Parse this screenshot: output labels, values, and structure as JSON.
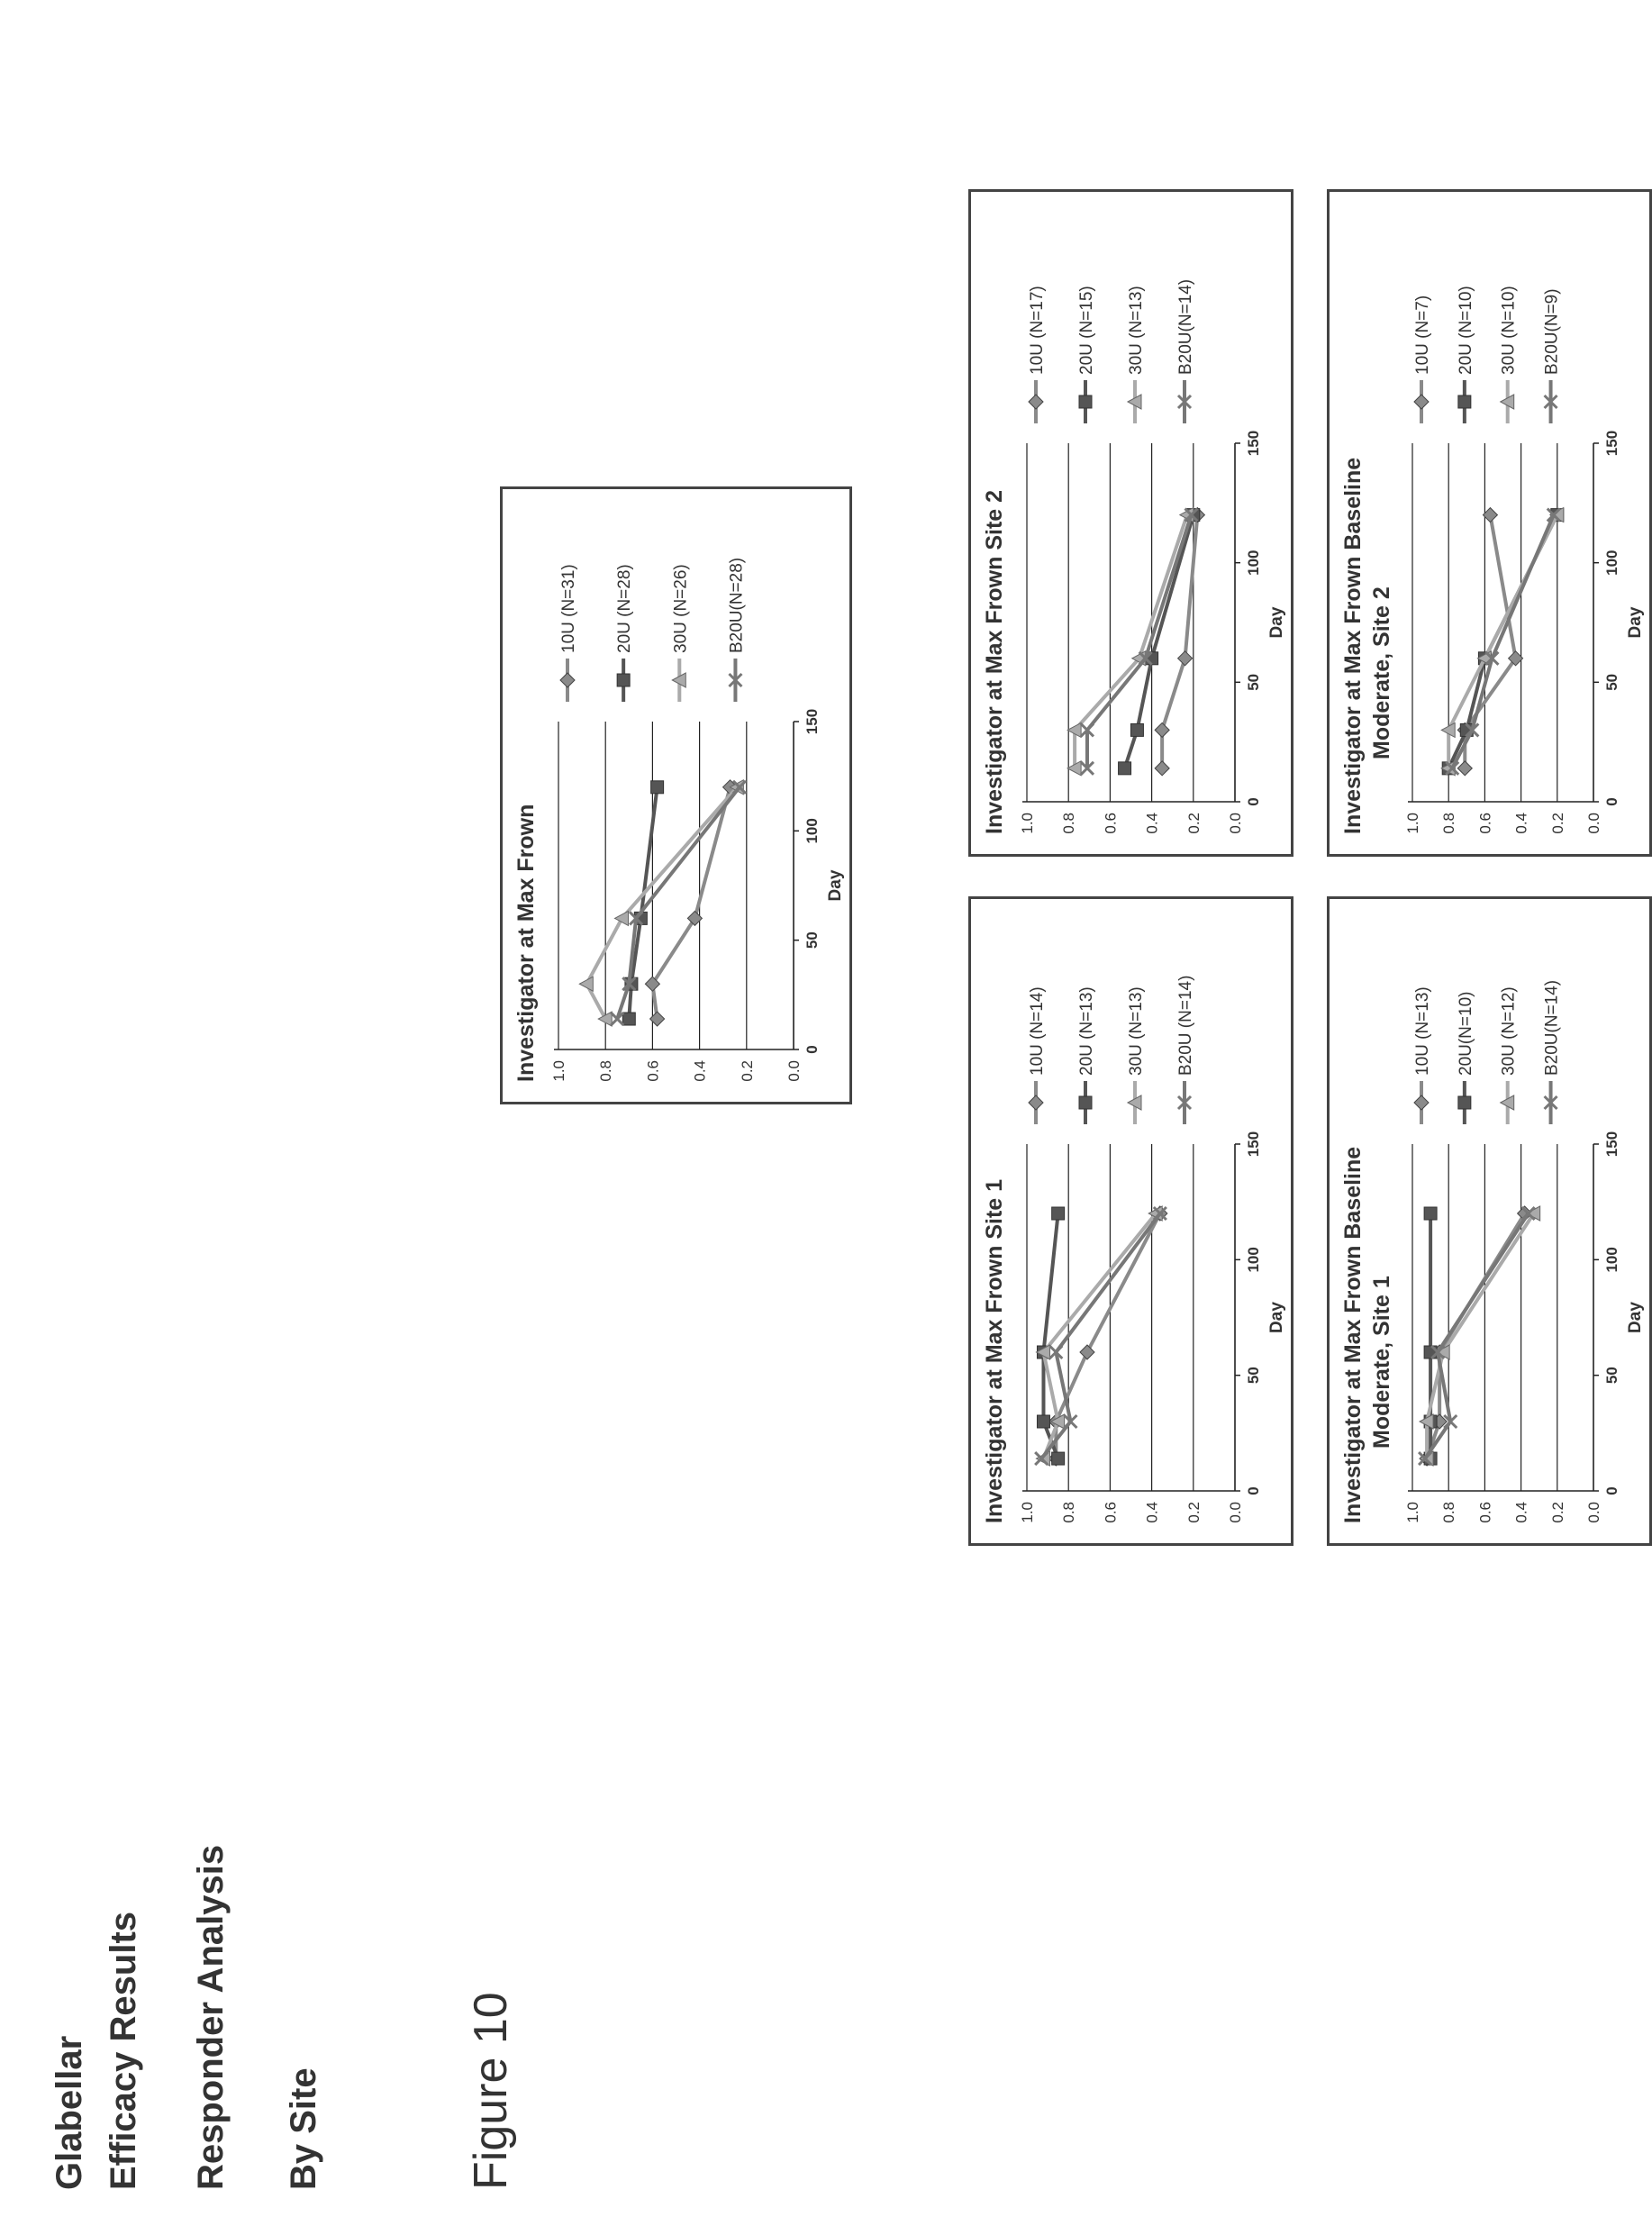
{
  "headings": {
    "line1": "Glabellar",
    "line2": "Efficacy Results",
    "line3": "Responder Analysis",
    "line4": "By Site",
    "figure_label": "Figure 10"
  },
  "chart_data": [
    {
      "id": "overall",
      "type": "line",
      "title": "Investigator at Max Frown",
      "title_lines": [
        "Investigator at Max Frown"
      ],
      "xlabel": "Day",
      "ylabel": "",
      "xlim": [
        0,
        150
      ],
      "ylim": [
        0.0,
        1.0
      ],
      "xticks": [
        0,
        50,
        100,
        150
      ],
      "yticks": [
        0.0,
        0.2,
        0.4,
        0.6,
        0.8,
        1.0
      ],
      "xtick_labels": [
        "0",
        "50",
        "100",
        "150"
      ],
      "ytick_labels": [
        "0.0",
        "0.2",
        "0.4",
        "0.6",
        "0.8",
        "1.0"
      ],
      "grid": true,
      "legend_position": "right",
      "series": [
        {
          "name": "10U (N=31)",
          "marker": "diamond",
          "color": "#8a8a8a",
          "x": [
            14,
            30,
            60,
            120
          ],
          "y": [
            0.58,
            0.6,
            0.42,
            0.27
          ]
        },
        {
          "name": "20U (N=28)",
          "marker": "square",
          "color": "#555555",
          "x": [
            14,
            30,
            60,
            120
          ],
          "y": [
            0.7,
            0.69,
            0.65,
            0.58
          ]
        },
        {
          "name": "30U (N=26)",
          "marker": "triangle",
          "color": "#aaaaaa",
          "x": [
            14,
            30,
            60,
            120
          ],
          "y": [
            0.8,
            0.88,
            0.73,
            0.24
          ]
        },
        {
          "name": "B20U(N=28)",
          "marker": "x",
          "color": "#777777",
          "x": [
            14,
            30,
            60,
            120
          ],
          "y": [
            0.75,
            0.7,
            0.67,
            0.23
          ]
        }
      ]
    },
    {
      "id": "site1",
      "type": "line",
      "title": "Investigator at Max Frown Site 1",
      "title_lines": [
        "Investigator at Max Frown Site 1"
      ],
      "xlabel": "Day",
      "ylabel": "",
      "xlim": [
        0,
        150
      ],
      "ylim": [
        0.0,
        1.0
      ],
      "xticks": [
        0,
        50,
        100,
        150
      ],
      "yticks": [
        0.0,
        0.2,
        0.4,
        0.6,
        0.8,
        1.0
      ],
      "xtick_labels": [
        "0",
        "50",
        "100",
        "150"
      ],
      "ytick_labels": [
        "0.0",
        "0.2",
        "0.4",
        "0.6",
        "0.8",
        "1.0"
      ],
      "grid": true,
      "legend_position": "right",
      "series": [
        {
          "name": "10U    (N=14)",
          "marker": "diamond",
          "color": "#8a8a8a",
          "x": [
            14,
            30,
            60,
            120
          ],
          "y": [
            0.86,
            0.86,
            0.71,
            0.36
          ]
        },
        {
          "name": "20U    (N=13)",
          "marker": "square",
          "color": "#555555",
          "x": [
            14,
            30,
            60,
            120
          ],
          "y": [
            0.85,
            0.92,
            0.92,
            0.85
          ]
        },
        {
          "name": "30U    (N=13)",
          "marker": "triangle",
          "color": "#aaaaaa",
          "x": [
            14,
            30,
            60,
            120
          ],
          "y": [
            0.92,
            0.85,
            0.92,
            0.38
          ]
        },
        {
          "name": "B20U (N=14)",
          "marker": "x",
          "color": "#777777",
          "x": [
            14,
            30,
            60,
            120
          ],
          "y": [
            0.93,
            0.79,
            0.86,
            0.36
          ]
        }
      ]
    },
    {
      "id": "site2",
      "type": "line",
      "title": "Investigator at Max Frown Site 2",
      "title_lines": [
        "Investigator at Max Frown Site 2"
      ],
      "xlabel": "Day",
      "ylabel": "",
      "xlim": [
        0,
        150
      ],
      "ylim": [
        0.0,
        1.0
      ],
      "xticks": [
        0,
        50,
        100,
        150
      ],
      "yticks": [
        0.0,
        0.2,
        0.4,
        0.6,
        0.8,
        1.0
      ],
      "xtick_labels": [
        "0",
        "50",
        "100",
        "150"
      ],
      "ytick_labels": [
        "0.0",
        "0.2",
        "0.4",
        "0.6",
        "0.8",
        "1.0"
      ],
      "grid": true,
      "legend_position": "right",
      "series": [
        {
          "name": "10U    (N=17)",
          "marker": "diamond",
          "color": "#8a8a8a",
          "x": [
            14,
            30,
            60,
            120
          ],
          "y": [
            0.35,
            0.35,
            0.24,
            0.18
          ]
        },
        {
          "name": "20U    (N=15)",
          "marker": "square",
          "color": "#555555",
          "x": [
            14,
            30,
            60,
            120
          ],
          "y": [
            0.53,
            0.47,
            0.4,
            0.2
          ]
        },
        {
          "name": "30U    (N=13)",
          "marker": "triangle",
          "color": "#aaaaaa",
          "x": [
            14,
            30,
            60,
            120
          ],
          "y": [
            0.77,
            0.77,
            0.46,
            0.23
          ]
        },
        {
          "name": "B20U(N=14)",
          "marker": "x",
          "color": "#777777",
          "x": [
            14,
            30,
            60,
            120
          ],
          "y": [
            0.71,
            0.71,
            0.43,
            0.21
          ]
        }
      ]
    },
    {
      "id": "mod-site1",
      "type": "line",
      "title": "Investigator at Max Frown Baseline Moderate, Site 1",
      "title_lines": [
        "Investigator at Max Frown Baseline",
        "Moderate, Site 1"
      ],
      "xlabel": "Day",
      "ylabel": "",
      "xlim": [
        0,
        150
      ],
      "ylim": [
        0.0,
        1.0
      ],
      "xticks": [
        0,
        50,
        100,
        150
      ],
      "yticks": [
        0.0,
        0.2,
        0.4,
        0.6,
        0.8,
        1.0
      ],
      "xtick_labels": [
        "0",
        "50",
        "100",
        "150"
      ],
      "ytick_labels": [
        "0.0",
        "0.2",
        "0.4",
        "0.6",
        "0.8",
        "1.0"
      ],
      "grid": true,
      "legend_position": "right",
      "series": [
        {
          "name": "10U (N=13)",
          "marker": "diamond",
          "color": "#8a8a8a",
          "x": [
            14,
            30,
            60,
            120
          ],
          "y": [
            0.92,
            0.85,
            0.85,
            0.38
          ]
        },
        {
          "name": "20U(N=10)",
          "marker": "square",
          "color": "#555555",
          "x": [
            14,
            30,
            60,
            120
          ],
          "y": [
            0.9,
            0.9,
            0.9,
            0.9
          ]
        },
        {
          "name": "30U (N=12)",
          "marker": "triangle",
          "color": "#aaaaaa",
          "x": [
            14,
            30,
            60,
            120
          ],
          "y": [
            0.92,
            0.92,
            0.83,
            0.33
          ]
        },
        {
          "name": "B20U(N=14)",
          "marker": "x",
          "color": "#777777",
          "x": [
            14,
            30,
            60,
            120
          ],
          "y": [
            0.93,
            0.79,
            0.86,
            0.36
          ]
        }
      ]
    },
    {
      "id": "mod-site2",
      "type": "line",
      "title": "Investigator at Max Frown Baseline Moderate, Site 2",
      "title_lines": [
        "Investigator at Max Frown Baseline",
        "Moderate, Site 2"
      ],
      "xlabel": "Day",
      "ylabel": "",
      "xlim": [
        0,
        150
      ],
      "ylim": [
        0.0,
        1.0
      ],
      "xticks": [
        0,
        50,
        100,
        150
      ],
      "yticks": [
        0.0,
        0.2,
        0.4,
        0.6,
        0.8,
        1.0
      ],
      "xtick_labels": [
        "0",
        "50",
        "100",
        "150"
      ],
      "ytick_labels": [
        "0.0",
        "0.2",
        "0.4",
        "0.6",
        "0.8",
        "1.0"
      ],
      "grid": true,
      "legend_position": "right",
      "series": [
        {
          "name": "10U (N=7)",
          "marker": "diamond",
          "color": "#8a8a8a",
          "x": [
            14,
            30,
            60,
            120
          ],
          "y": [
            0.71,
            0.71,
            0.43,
            0.57
          ]
        },
        {
          "name": "20U (N=10)",
          "marker": "square",
          "color": "#555555",
          "x": [
            14,
            30,
            60,
            120
          ],
          "y": [
            0.8,
            0.7,
            0.6,
            0.2
          ]
        },
        {
          "name": "30U (N=10)",
          "marker": "triangle",
          "color": "#aaaaaa",
          "x": [
            14,
            30,
            60,
            120
          ],
          "y": [
            0.8,
            0.8,
            0.6,
            0.2
          ]
        },
        {
          "name": "B20U(N=9)",
          "marker": "x",
          "color": "#777777",
          "x": [
            14,
            30,
            60,
            120
          ],
          "y": [
            0.78,
            0.67,
            0.56,
            0.22
          ]
        }
      ]
    }
  ]
}
